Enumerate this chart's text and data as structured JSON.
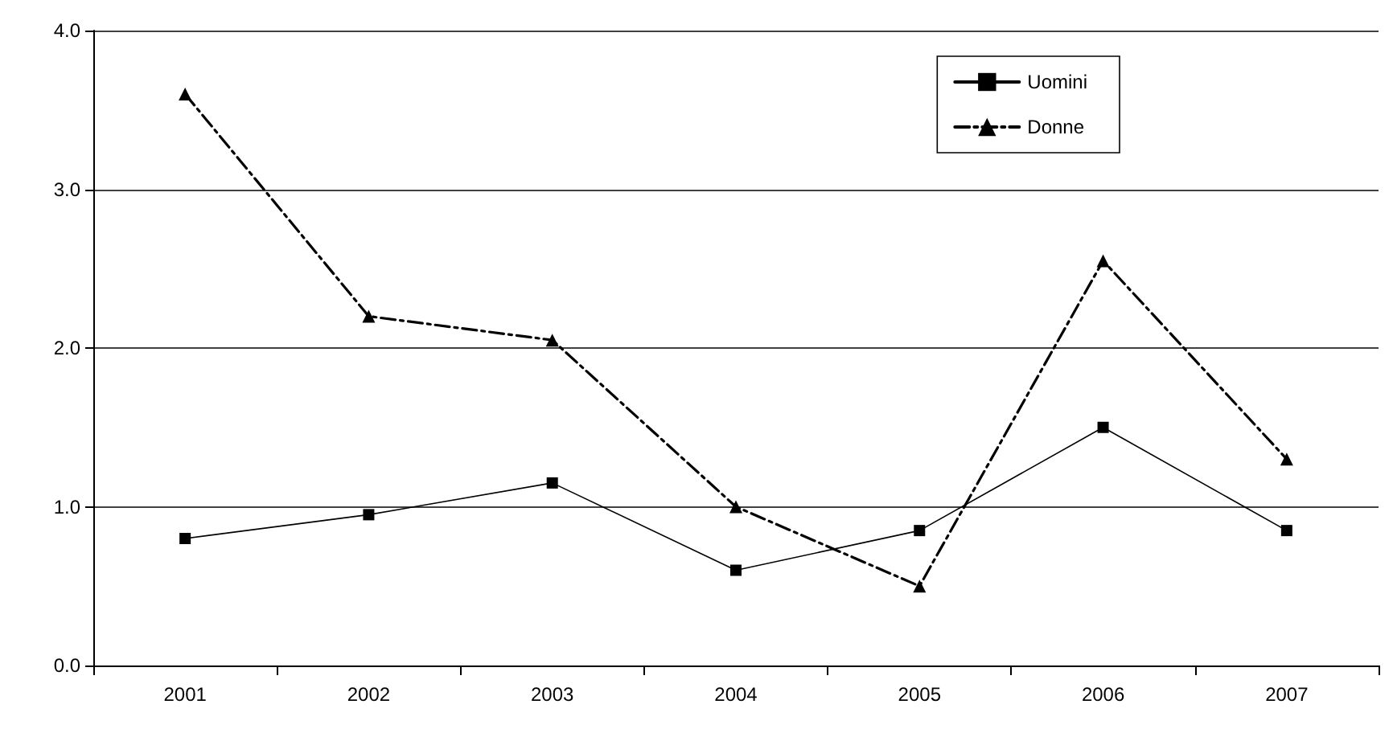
{
  "chart_data": {
    "type": "line",
    "categories": [
      "2001",
      "2002",
      "2003",
      "2004",
      "2005",
      "2006",
      "2007"
    ],
    "series": [
      {
        "name": "Uomini",
        "color": "#000000",
        "marker": "square",
        "line_style": "solid",
        "values": [
          0.8,
          0.95,
          1.15,
          0.6,
          0.85,
          1.5,
          0.85
        ]
      },
      {
        "name": "Donne",
        "color": "#000000",
        "marker": "triangle",
        "line_style": "dashed",
        "values": [
          3.6,
          2.2,
          2.05,
          1.0,
          0.5,
          2.55,
          1.3
        ]
      }
    ],
    "ylim": [
      0,
      4
    ],
    "yticks": [
      {
        "value": 0,
        "label": "0.0"
      },
      {
        "value": 1,
        "label": "1.0"
      },
      {
        "value": 2,
        "label": "2.0"
      },
      {
        "value": 3,
        "label": "3.0"
      },
      {
        "value": 4,
        "label": "4.0"
      }
    ],
    "grid": "y",
    "legend": "top right"
  }
}
